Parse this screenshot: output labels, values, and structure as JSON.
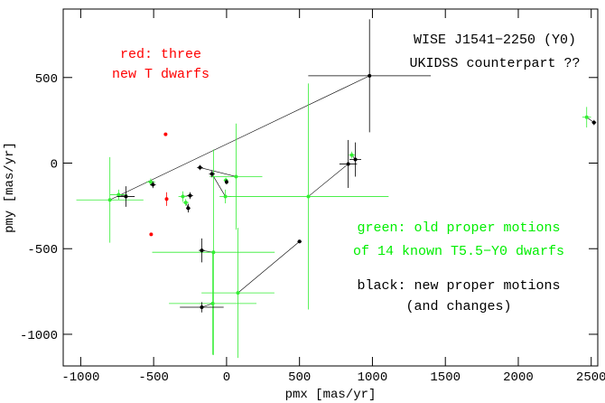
{
  "chart_data": {
    "type": "scatter",
    "x_label": "pmx [mas/yr]",
    "y_label": "pmy [mas/yr]",
    "xlim": [
      -1120,
      2545
    ],
    "ylim": [
      -1185,
      900
    ],
    "xticks": [
      -1000,
      -500,
      0,
      500,
      1000,
      1500,
      2000,
      2500
    ],
    "yticks": [
      -1000,
      -500,
      0,
      500
    ],
    "annotations": [
      {
        "text": "red: three",
        "color": "#ff0000"
      },
      {
        "text": "new T dwarfs",
        "color": "#ff0000"
      },
      {
        "text": "WISE J1541−2250 (Y0)",
        "color": "#000000"
      },
      {
        "text": "UKIDSS counterpart ??",
        "color": "#000000"
      },
      {
        "text": "green: old proper motions",
        "color": "#00ee00"
      },
      {
        "text": "of 14 known T5.5−Y0 dwarfs",
        "color": "#00ee00"
      },
      {
        "text": "black: new proper motions",
        "color": "#000000"
      },
      {
        "text": "(and changes)",
        "color": "#000000"
      }
    ],
    "series": [
      {
        "color": "#33ee33",
        "x": [
          -800,
          -740,
          -520,
          65,
          -8,
          -300,
          -280,
          -90,
          -95,
          78,
          561,
          859,
          2469,
          -5
        ],
        "y": [
          -215,
          -185,
          -110,
          -79,
          -195,
          -195,
          -230,
          -521,
          -820,
          -758,
          -195,
          47,
          268,
          -100
        ],
        "xerr": [
          230,
          60,
          30,
          180,
          40,
          30,
          20,
          420,
          300,
          250,
          550,
          20,
          30,
          15
        ],
        "yerr": [
          250,
          30,
          20,
          310,
          40,
          30,
          20,
          600,
          300,
          380,
          660,
          20,
          60,
          15
        ]
      },
      {
        "color": "#000000",
        "x": [
          980,
          -690,
          -505,
          -182,
          -100,
          -250,
          -263,
          -170,
          -170,
          500,
          834,
          883,
          2519,
          0
        ],
        "y": [
          510,
          -195,
          -126,
          -26,
          -63,
          -190,
          -263,
          -510,
          -842,
          -458,
          -5,
          21,
          237,
          -110
        ],
        "xerr": [
          420,
          60,
          20,
          20,
          20,
          20,
          15,
          20,
          150,
          15,
          60,
          40,
          15,
          10
        ],
        "yerr": [
          330,
          60,
          20,
          15,
          20,
          20,
          25,
          70,
          30,
          10,
          140,
          100,
          15,
          15
        ]
      },
      {
        "color": "#ff0000",
        "x": [
          -418,
          -411,
          -517
        ],
        "y": [
          168,
          -210,
          -416
        ],
        "xerr": [
          0,
          0,
          0
        ],
        "yerr": [
          0,
          40,
          0
        ]
      }
    ]
  }
}
